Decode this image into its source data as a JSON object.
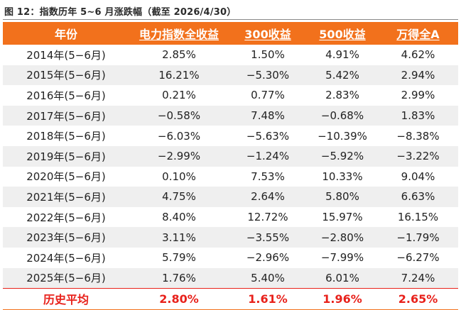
{
  "figure": {
    "title": "图 12：指数历年 5~6 月涨跌幅（截至 2026/4/30）"
  },
  "table": {
    "headers": [
      "年份",
      "电力指数全收益",
      "300收益",
      "500收益",
      "万得全A"
    ],
    "rows": [
      [
        "2014年(5−6月)",
        "2.85%",
        "1.50%",
        "4.91%",
        "4.62%"
      ],
      [
        "2015年(5−6月)",
        "16.21%",
        "−5.30%",
        "5.42%",
        "2.94%"
      ],
      [
        "2016年(5−6月)",
        "0.21%",
        "0.77%",
        "2.83%",
        "2.99%"
      ],
      [
        "2017年(5−6月)",
        "−0.58%",
        "7.48%",
        "−0.68%",
        "1.83%"
      ],
      [
        "2018年(5−6月)",
        "−6.03%",
        "−5.63%",
        "−10.39%",
        "−8.38%"
      ],
      [
        "2019年(5−6月)",
        "−2.99%",
        "−1.24%",
        "−5.92%",
        "−3.22%"
      ],
      [
        "2020年(5−6月)",
        "0.10%",
        "7.53%",
        "10.33%",
        "9.04%"
      ],
      [
        "2021年(5−6月)",
        "4.75%",
        "2.64%",
        "5.80%",
        "6.63%"
      ],
      [
        "2022年(5−6月)",
        "8.40%",
        "12.72%",
        "15.97%",
        "16.15%"
      ],
      [
        "2023年(5−6月)",
        "3.11%",
        "−3.55%",
        "−2.80%",
        "−1.79%"
      ],
      [
        "2024年(5−6月)",
        "5.79%",
        "−2.96%",
        "−7.99%",
        "−6.27%"
      ],
      [
        "2025年(5−6月)",
        "1.76%",
        "5.40%",
        "6.01%",
        "7.24%"
      ]
    ],
    "average": [
      "历史平均",
      "2.80%",
      "1.61%",
      "1.96%",
      "2.65%"
    ]
  },
  "colors": {
    "header_bg": "#f2711c",
    "header_text": "#ffffff",
    "stripe": "#efefef",
    "average_text": "#e8211b"
  }
}
